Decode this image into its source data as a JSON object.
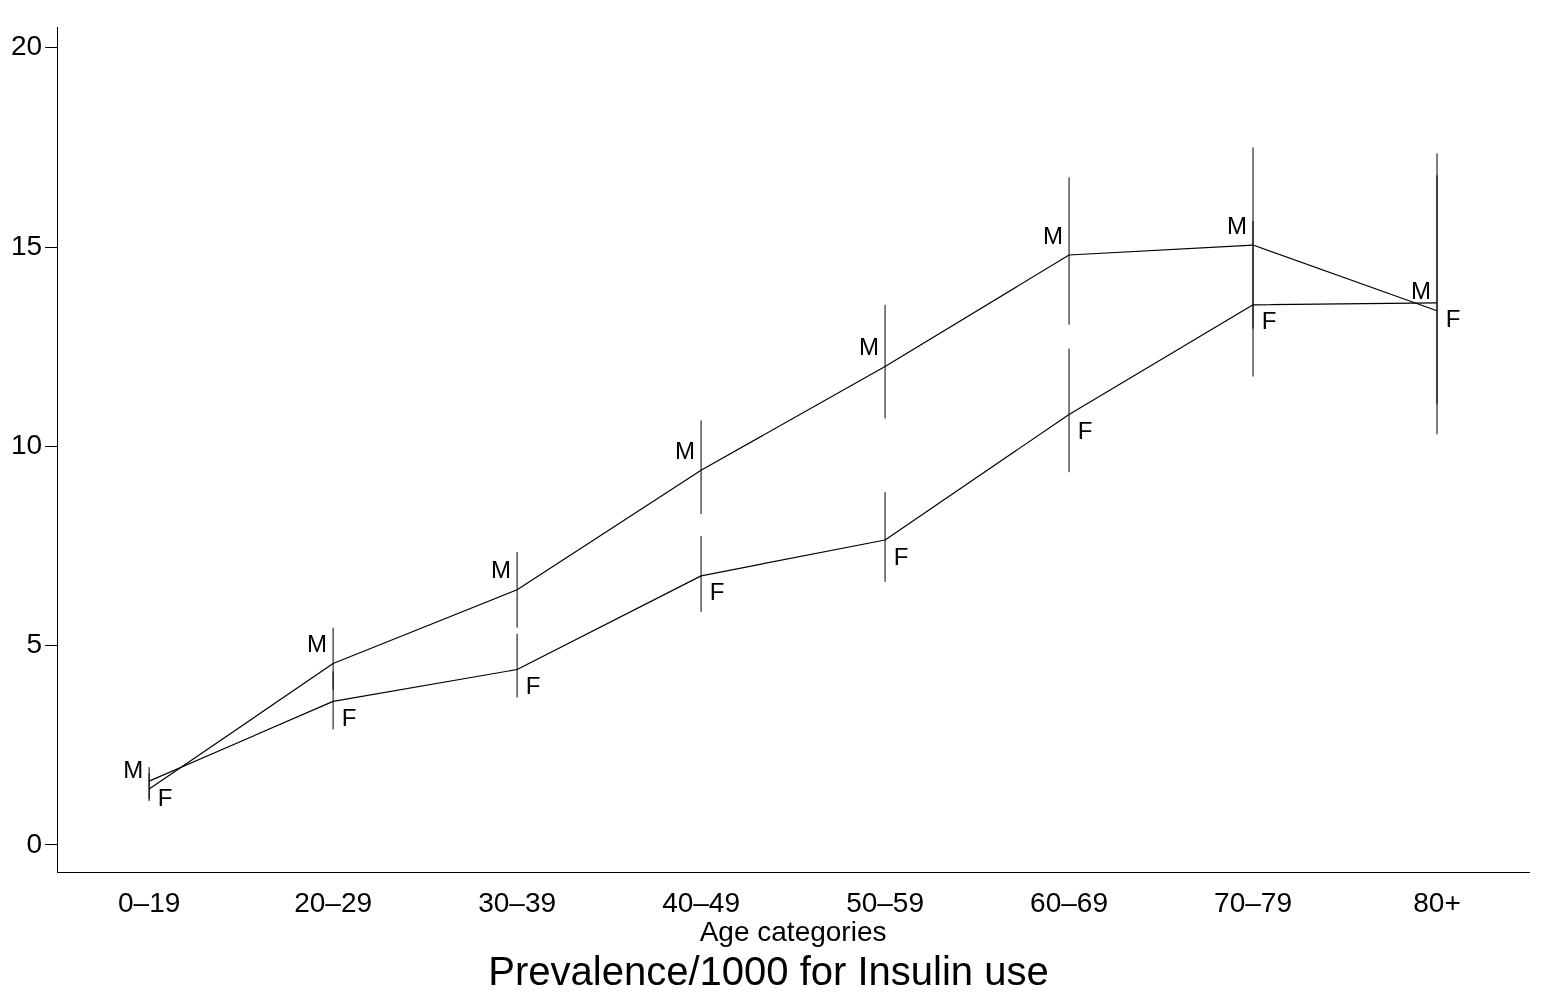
{
  "chart_data": {
    "type": "line",
    "title": "Prevalence/1000 for Insulin use",
    "xlabel": "Age categories",
    "categories": [
      "0–19",
      "20–29",
      "30–39",
      "40–49",
      "50–59",
      "60–69",
      "70–79",
      "80+"
    ],
    "ylim": [
      -0.7,
      20.5
    ],
    "yticks": [
      0,
      5,
      10,
      15,
      20
    ],
    "grid": false,
    "legend": false,
    "marker": "none",
    "line_style": "solid",
    "series": [
      {
        "name": "F",
        "color": "#000000",
        "values": [
          1.6,
          3.6,
          4.4,
          6.75,
          7.65,
          10.8,
          13.55,
          13.6
        ],
        "errors": [
          [
            1.15,
            1.95
          ],
          [
            2.9,
            4.35
          ],
          [
            3.7,
            5.3
          ],
          [
            5.85,
            7.75
          ],
          [
            6.6,
            8.85
          ],
          [
            9.35,
            12.45
          ],
          [
            11.75,
            15.65
          ],
          [
            11.05,
            16.8
          ]
        ]
      },
      {
        "name": "M",
        "color": "#000000",
        "values": [
          1.4,
          4.55,
          6.4,
          9.4,
          12.0,
          14.8,
          15.05,
          13.4
        ],
        "errors": [
          [
            1.1,
            1.8
          ],
          [
            3.9,
            5.45
          ],
          [
            5.45,
            7.35
          ],
          [
            8.3,
            10.65
          ],
          [
            10.7,
            13.55
          ],
          [
            13.05,
            16.75
          ],
          [
            12.95,
            17.5
          ],
          [
            10.3,
            17.35
          ]
        ]
      }
    ]
  }
}
